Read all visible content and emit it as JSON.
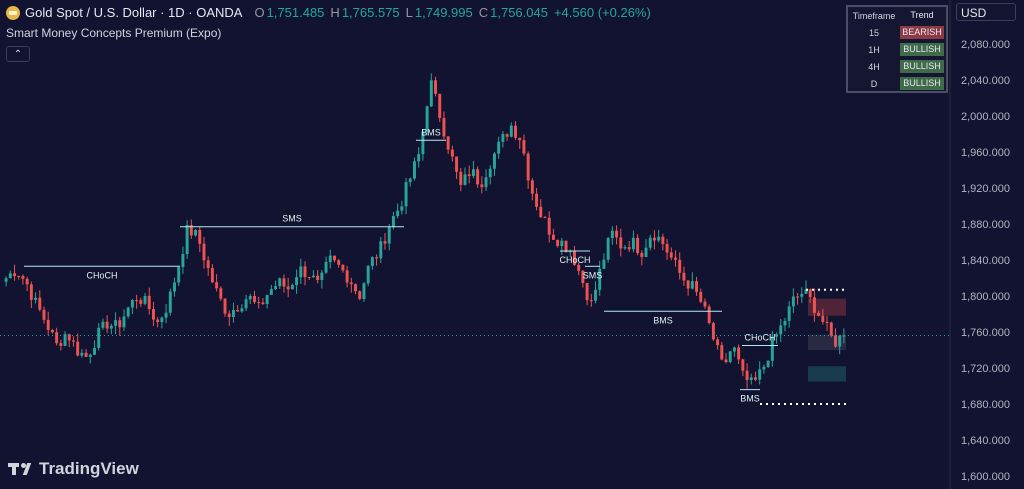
{
  "header": {
    "title": "Gold Spot / U.S. Dollar · 1D · OANDA",
    "ohlc": [
      {
        "k": "O",
        "v": "1,751.485"
      },
      {
        "k": "H",
        "v": "1,765.575"
      },
      {
        "k": "L",
        "v": "1,749.995"
      },
      {
        "k": "C",
        "v": "1,756.045"
      }
    ],
    "change": "+4.560 (+0.26%)",
    "indicator": "Smart Money Concepts Premium (Expo)",
    "collapse_icon": "chevron-up-icon"
  },
  "currency": "USD",
  "trend_table": {
    "headers": [
      "Timeframe",
      "Trend"
    ],
    "rows": [
      {
        "tf": "15",
        "trend": "BEARISH"
      },
      {
        "tf": "1H",
        "trend": "BULLISH"
      },
      {
        "tf": "4H",
        "trend": "BULLISH"
      },
      {
        "tf": "D",
        "trend": "BULLISH"
      }
    ]
  },
  "logo": "TradingView",
  "colors": {
    "background": "#121330",
    "up": "#26a69a",
    "down": "#ef5350",
    "structure_line": "#b2ebf2",
    "price_line": "#26a69a"
  },
  "chart_data": {
    "type": "candlestick",
    "y_ticks": [
      2080,
      2040,
      2000,
      1960,
      1920,
      1880,
      1840,
      1800,
      1760,
      1720,
      1680,
      1640,
      1600
    ],
    "y_tick_labels": [
      "2,080.000",
      "2,040.000",
      "2,000.000",
      "1,960.000",
      "1,920.000",
      "1,880.000",
      "1,840.000",
      "1,800.000",
      "1,760.000",
      "1,720.000",
      "1,680.000",
      "1,640.000",
      "1,600.000"
    ],
    "ylim": [
      1590,
      2100
    ],
    "last_price": 1756.045,
    "close_path": [
      1820,
      1830,
      1815,
      1790,
      1770,
      1745,
      1760,
      1740,
      1732,
      1755,
      1770,
      1765,
      1785,
      1800,
      1790,
      1770,
      1790,
      1830,
      1875,
      1865,
      1830,
      1800,
      1780,
      1790,
      1800,
      1785,
      1805,
      1815,
      1808,
      1830,
      1825,
      1810,
      1840,
      1832,
      1820,
      1800,
      1835,
      1850,
      1880,
      1900,
      1930,
      1960,
      2040,
      2000,
      1960,
      1920,
      1940,
      1925,
      1950,
      1970,
      1990,
      1975,
      1920,
      1890,
      1870,
      1860,
      1850,
      1820,
      1790,
      1835,
      1870,
      1855,
      1860,
      1850,
      1872,
      1860,
      1840,
      1820,
      1810,
      1790,
      1755,
      1720,
      1745,
      1710,
      1700,
      1720,
      1750,
      1770,
      1795,
      1805,
      1790,
      1770,
      1748,
      1756
    ],
    "annotations": [
      {
        "text": "CHoCH",
        "price": 1833
      },
      {
        "text": "SMS",
        "price": 1877
      },
      {
        "text": "BMS",
        "price": 1973
      },
      {
        "text": "CHoCH",
        "price": 1850
      },
      {
        "text": "SMS",
        "price": 1833
      },
      {
        "text": "BMS",
        "price": 1783
      },
      {
        "text": "CHoCH",
        "price": 1745
      },
      {
        "text": "BMS",
        "price": 1696
      }
    ],
    "zones": [
      {
        "kind": "premium",
        "from": 1778,
        "to": 1797
      },
      {
        "kind": "equilibrium",
        "from": 1740,
        "to": 1757
      },
      {
        "kind": "discount",
        "from": 1705,
        "to": 1722
      }
    ],
    "range_levels": {
      "high": 1807,
      "low": 1680
    }
  }
}
